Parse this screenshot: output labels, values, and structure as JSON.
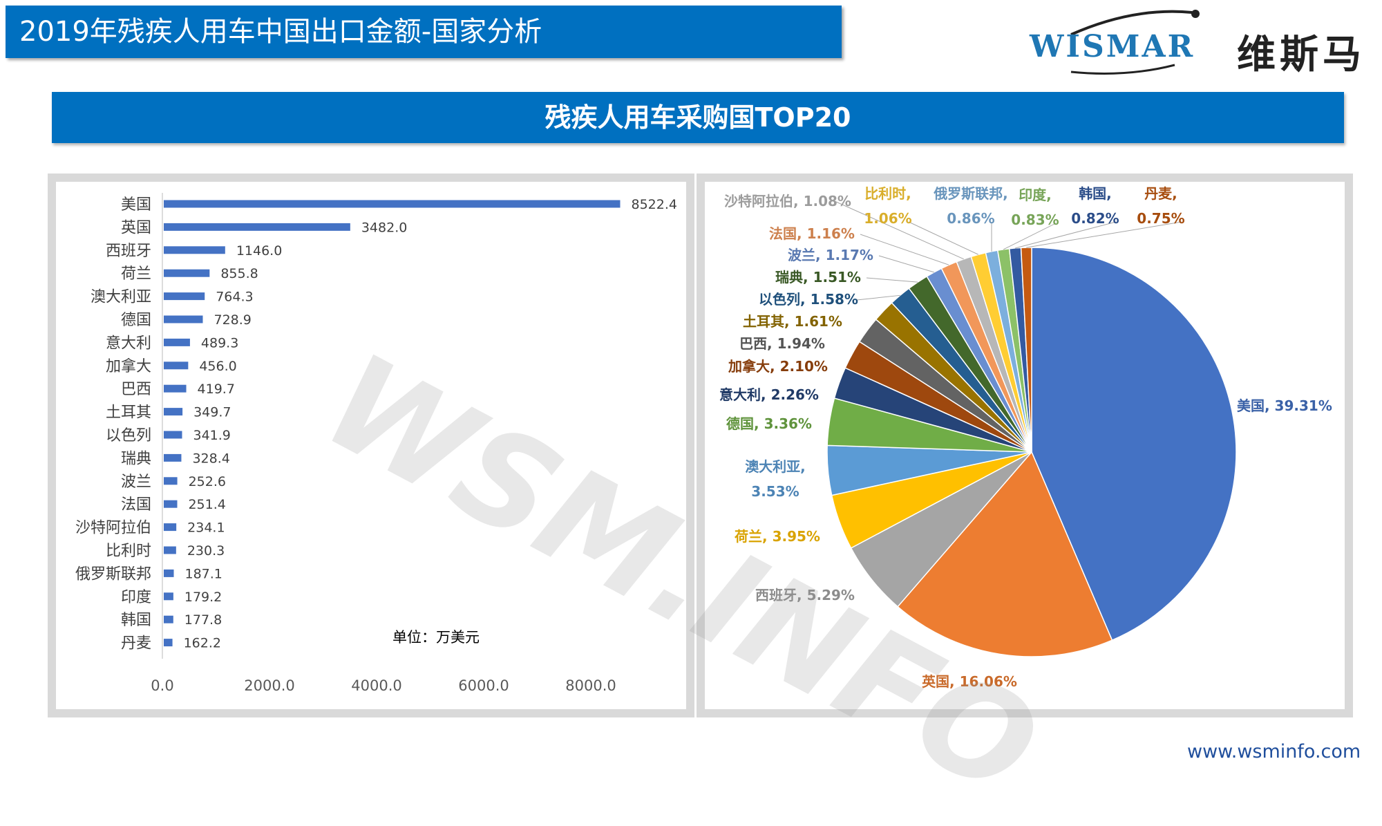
{
  "header": {
    "title": "2019年残疾人用车中国出口金额-国家分析"
  },
  "logo": {
    "en": "WISMAR",
    "cn": "维斯马"
  },
  "banner": {
    "title": "残疾人用车采购国TOP20"
  },
  "watermark": "WSM.INFO",
  "footer": {
    "url": "www.wsminfo.com"
  },
  "chart_data": [
    {
      "type": "bar",
      "orientation": "horizontal",
      "categories": [
        "美国",
        "英国",
        "西班牙",
        "荷兰",
        "澳大利亚",
        "德国",
        "意大利",
        "加拿大",
        "巴西",
        "土耳其",
        "以色列",
        "瑞典",
        "波兰",
        "法国",
        "沙特阿拉伯",
        "比利时",
        "俄罗斯联邦",
        "印度",
        "韩国",
        "丹麦"
      ],
      "values": [
        8522.4,
        3482.0,
        1146.0,
        855.8,
        764.3,
        728.9,
        489.3,
        456.0,
        419.7,
        349.7,
        341.9,
        328.4,
        252.6,
        251.4,
        234.1,
        230.3,
        187.1,
        179.2,
        177.8,
        162.2
      ],
      "value_labels": [
        "8522.4",
        "3482.0",
        "1146.0",
        "855.8",
        "764.3",
        "728.9",
        "489.3",
        "456.0",
        "419.7",
        "349.7",
        "341.9",
        "328.4",
        "252.6",
        "251.4",
        "234.1",
        "230.3",
        "187.1",
        "179.2",
        "177.8",
        "162.2"
      ],
      "xlim": [
        0,
        8000
      ],
      "xticks": [
        "0.0",
        "2000.0",
        "4000.0",
        "6000.0",
        "8000.0"
      ],
      "unit_note": "单位：万美元",
      "bar_color": "#4472c4",
      "grid": false
    },
    {
      "type": "pie",
      "slices": [
        {
          "label": "美国",
          "value": 39.31,
          "text": "美国, 39.31%",
          "color": "#4472c4"
        },
        {
          "label": "英国",
          "value": 16.06,
          "text": "英国, 16.06%",
          "color": "#ed7d31"
        },
        {
          "label": "西班牙",
          "value": 5.29,
          "text": "西班牙, 5.29%",
          "color": "#a5a5a5"
        },
        {
          "label": "荷兰",
          "value": 3.95,
          "text": "荷兰, 3.95%",
          "color": "#ffc000"
        },
        {
          "label": "澳大利亚",
          "value": 3.53,
          "text": "澳大利亚, 3.53%",
          "color": "#5b9bd5"
        },
        {
          "label": "德国",
          "value": 3.36,
          "text": "德国, 3.36%",
          "color": "#70ad47"
        },
        {
          "label": "意大利",
          "value": 2.26,
          "text": "意大利, 2.26%",
          "color": "#264478"
        },
        {
          "label": "加拿大",
          "value": 2.1,
          "text": "加拿大, 2.10%",
          "color": "#9e480e"
        },
        {
          "label": "巴西",
          "value": 1.94,
          "text": "巴西, 1.94%",
          "color": "#636363"
        },
        {
          "label": "土耳其",
          "value": 1.61,
          "text": "土耳其, 1.61%",
          "color": "#997300"
        },
        {
          "label": "以色列",
          "value": 1.58,
          "text": "以色列, 1.58%",
          "color": "#255e91"
        },
        {
          "label": "瑞典",
          "value": 1.51,
          "text": "瑞典, 1.51%",
          "color": "#43682b"
        },
        {
          "label": "波兰",
          "value": 1.17,
          "text": "波兰, 1.17%",
          "color": "#698ed0"
        },
        {
          "label": "法国",
          "value": 1.16,
          "text": "法国, 1.16%",
          "color": "#f1975a"
        },
        {
          "label": "沙特阿拉伯",
          "value": 1.08,
          "text": "沙特阿拉伯, 1.08%",
          "color": "#b7b7b7"
        },
        {
          "label": "比利时",
          "value": 1.06,
          "text": "比利时, 1.06%",
          "color": "#ffcd33"
        },
        {
          "label": "俄罗斯联邦",
          "value": 0.86,
          "text": "俄罗斯联邦, 0.86%",
          "color": "#7cafdd"
        },
        {
          "label": "印度",
          "value": 0.83,
          "text": "印度, 0.83%",
          "color": "#8cc168"
        },
        {
          "label": "韩国",
          "value": 0.82,
          "text": "韩国, 0.82%",
          "color": "#335aa1"
        },
        {
          "label": "丹麦",
          "value": 0.75,
          "text": "丹麦, 0.75%",
          "color": "#c55a11"
        }
      ]
    }
  ]
}
